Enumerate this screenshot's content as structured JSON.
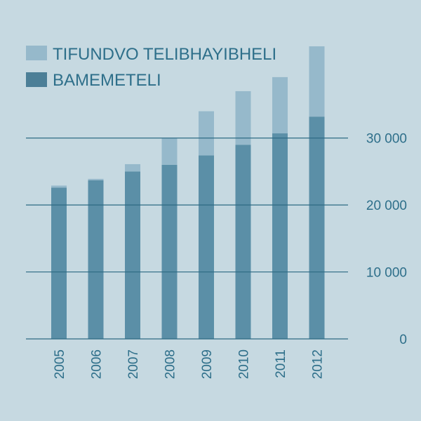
{
  "chart_data": {
    "type": "bar",
    "stacked": true,
    "categories": [
      "2005",
      "2006",
      "2007",
      "2008",
      "2009",
      "2010",
      "2011",
      "2012"
    ],
    "series": [
      {
        "name": "BAMEMETELI",
        "color": "#5b8fa7",
        "values": [
          22600,
          23700,
          25000,
          26000,
          27400,
          29000,
          30700,
          33200
        ]
      },
      {
        "name": "TIFUNDVO TELIBHAYIBHELI",
        "color": "#96b9cb",
        "values": [
          300,
          200,
          1100,
          4000,
          6600,
          8000,
          8400,
          10500
        ]
      }
    ],
    "ylim": [
      0,
      43700
    ],
    "yticks": [
      0,
      10000,
      20000,
      30000
    ],
    "ytick_labels": [
      "0",
      "10 000",
      "20 000",
      "30 000"
    ],
    "y_axis_side": "right",
    "grid": true,
    "legend_position": "top-left",
    "xlabel": "",
    "ylabel": "",
    "title": ""
  }
}
